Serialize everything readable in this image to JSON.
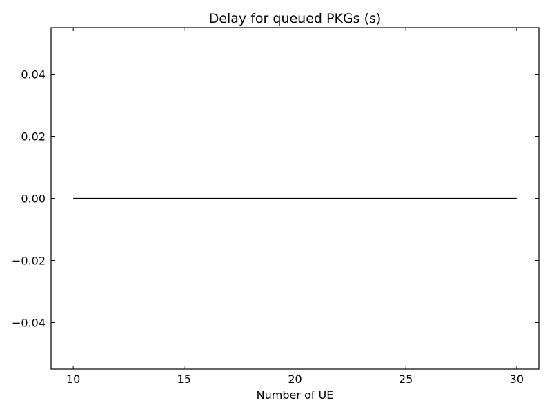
{
  "chart_data": {
    "type": "line",
    "title": "Delay for queued PKGs (s)",
    "xlabel": "Number of UE",
    "ylabel": "",
    "xlim": [
      9,
      31
    ],
    "ylim": [
      -0.055,
      0.055
    ],
    "x_ticks": [
      10,
      15,
      20,
      25,
      30
    ],
    "x_tick_labels": [
      "10",
      "15",
      "20",
      "25",
      "30"
    ],
    "y_ticks": [
      -0.04,
      -0.02,
      0.0,
      0.02,
      0.04
    ],
    "y_tick_labels": [
      "−0.04",
      "−0.02",
      "0.00",
      "0.02",
      "0.04"
    ],
    "grid": false,
    "legend": "none",
    "series": [
      {
        "color": "#000000",
        "x": [
          10,
          15,
          20,
          25,
          30
        ],
        "y": [
          0,
          0,
          0,
          0,
          0
        ]
      }
    ]
  }
}
